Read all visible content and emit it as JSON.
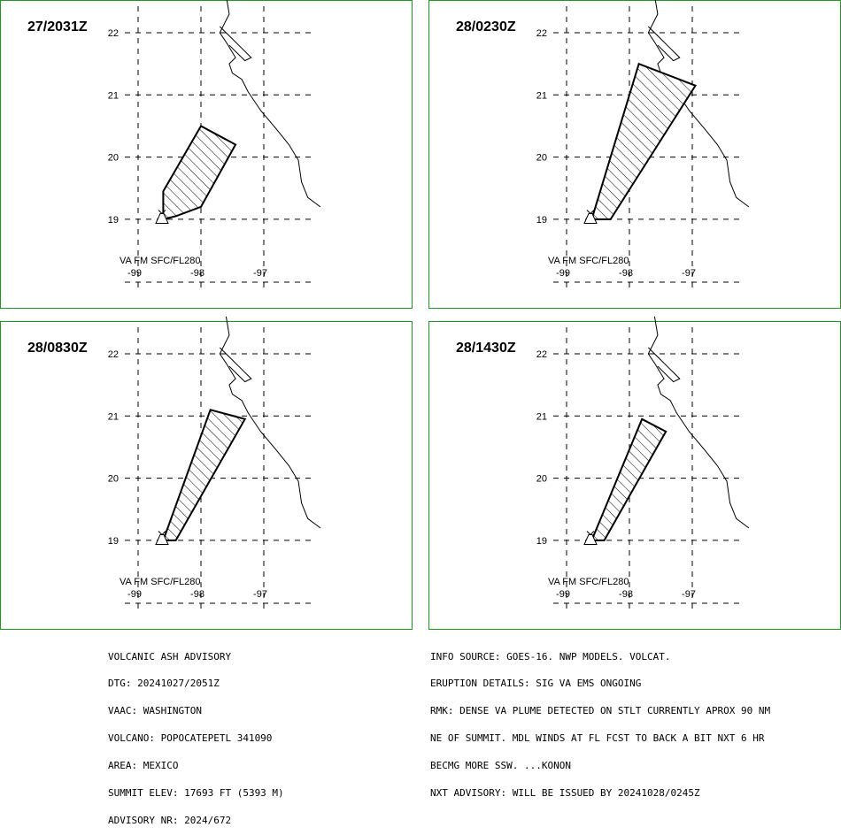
{
  "panels": [
    {
      "time": "27/2031Z",
      "level_label": "VA FM SFC/FL280",
      "lat_ticks": [
        "22",
        "21",
        "20",
        "19"
      ],
      "lon_ticks": [
        "-99",
        "-98",
        "-97"
      ],
      "plume": [
        [
          -98.4,
          19.05
        ],
        [
          -98.6,
          19.0
        ],
        [
          -98.6,
          19.45
        ],
        [
          -98.0,
          20.5
        ],
        [
          -97.45,
          20.2
        ],
        [
          -98.0,
          19.2
        ]
      ]
    },
    {
      "time": "28/0230Z",
      "level_label": "VA FM SFC/FL280",
      "lat_ticks": [
        "22",
        "21",
        "20",
        "19"
      ],
      "lon_ticks": [
        "-99",
        "-98",
        "-97"
      ],
      "plume": [
        [
          -98.6,
          19.0
        ],
        [
          -98.3,
          19.0
        ],
        [
          -96.95,
          21.15
        ],
        [
          -97.85,
          21.5
        ]
      ]
    },
    {
      "time": "28/0830Z",
      "level_label": "VA FM SFC/FL280",
      "lat_ticks": [
        "22",
        "21",
        "20",
        "19"
      ],
      "lon_ticks": [
        "-99",
        "-98",
        "-97"
      ],
      "plume": [
        [
          -98.6,
          19.0
        ],
        [
          -98.4,
          19.0
        ],
        [
          -97.3,
          20.95
        ],
        [
          -97.85,
          21.1
        ]
      ]
    },
    {
      "time": "28/1430Z",
      "level_label": "VA FM SFC/FL280",
      "lat_ticks": [
        "22",
        "21",
        "20",
        "19"
      ],
      "lon_ticks": [
        "-99",
        "-98",
        "-97"
      ],
      "plume": [
        [
          -98.6,
          19.0
        ],
        [
          -98.4,
          19.0
        ],
        [
          -97.42,
          20.75
        ],
        [
          -97.8,
          20.95
        ]
      ]
    }
  ],
  "volcano": {
    "lon": -98.62,
    "lat": 19.02
  },
  "coastline": [
    [
      -97.6,
      22.6
    ],
    [
      -97.55,
      22.3
    ],
    [
      -97.7,
      22.0
    ],
    [
      -97.6,
      21.85
    ],
    [
      -97.45,
      21.6
    ],
    [
      -97.55,
      21.5
    ],
    [
      -97.5,
      21.35
    ],
    [
      -97.35,
      21.25
    ],
    [
      -97.25,
      21.05
    ],
    [
      -97.05,
      20.75
    ],
    [
      -96.8,
      20.45
    ],
    [
      -96.6,
      20.2
    ],
    [
      -96.45,
      19.95
    ],
    [
      -96.4,
      19.6
    ],
    [
      -96.3,
      19.35
    ],
    [
      -96.1,
      19.2
    ]
  ],
  "lagoon": [
    [
      -97.7,
      22.1
    ],
    [
      -97.55,
      21.95
    ],
    [
      -97.35,
      21.75
    ],
    [
      -97.2,
      21.6
    ],
    [
      -97.3,
      21.55
    ],
    [
      -97.45,
      21.7
    ],
    [
      -97.55,
      21.8
    ]
  ],
  "advisory_left": [
    "VOLCANIC ASH ADVISORY",
    "DTG: 20241027/2051Z",
    "VAAC: WASHINGTON",
    "VOLCANO: POPOCATEPETL 341090",
    "AREA: MEXICO",
    "SUMMIT ELEV: 17693 FT (5393 M)",
    "ADVISORY NR: 2024/672"
  ],
  "advisory_right": [
    "INFO SOURCE: GOES-16. NWP MODELS. VOLCAT.",
    "ERUPTION DETAILS: SIG VA EMS ONGOING",
    "RMK: DENSE VA PLUME DETECTED ON STLT CURRENTLY APROX 90 NM",
    "NE OF SUMMIT. MDL WINDS AT FL FCST TO BACK A BIT NXT 6 HR",
    "BECMG MORE SSW. ...KONON",
    "NXT ADVISORY: WILL BE ISSUED BY 20241028/0245Z"
  ]
}
